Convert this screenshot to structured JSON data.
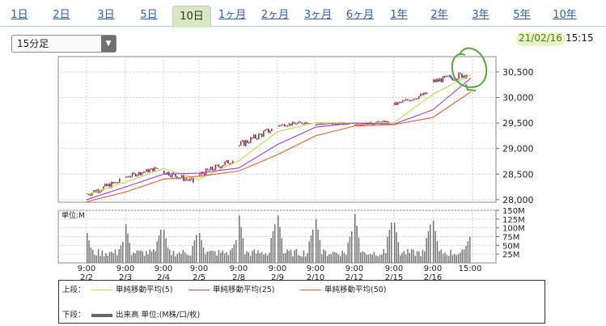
{
  "tabs": [
    {
      "label": "1日",
      "active": false
    },
    {
      "label": "2日",
      "active": false
    },
    {
      "label": "3日",
      "active": false
    },
    {
      "label": "5日",
      "active": false
    },
    {
      "label": "10日",
      "active": true
    },
    {
      "label": "1ヶ月",
      "active": false
    },
    {
      "label": "2ヶ月",
      "active": false
    },
    {
      "label": "3ヶ月",
      "active": false
    },
    {
      "label": "6ヶ月",
      "active": false
    },
    {
      "label": "1年",
      "active": false
    },
    {
      "label": "2年",
      "active": false
    },
    {
      "label": "3年",
      "active": false
    },
    {
      "label": "5年",
      "active": false
    },
    {
      "label": "10年",
      "active": false
    }
  ],
  "interval_select": {
    "value": "15分足"
  },
  "timestamp": {
    "date": "21/02/16",
    "time": "15:15"
  },
  "legend": {
    "upper_label": "上段：",
    "lower_label": "下段：",
    "ma5": "単純移動平均(5)",
    "ma25": "単純移動平均(25)",
    "ma50": "単純移動平均(50)",
    "volume": "出来高 単位:(M株/口/枚)"
  },
  "colors": {
    "ma5": "#c8d84a",
    "ma25": "#9b3fd6",
    "ma50": "#ee5a2a",
    "up": "#d4281c",
    "down": "#2a3f9e",
    "volume": "#777777",
    "annotation": "#5aa63c"
  },
  "chart_data": [
    {
      "type": "line",
      "title": "",
      "y_ticks": [
        "28,000",
        "28,500",
        "29,000",
        "29,500",
        "30,000",
        "30,500"
      ],
      "ylim": [
        27950,
        30800
      ],
      "x_tick_labels": [
        [
          "9:00",
          "2/2"
        ],
        [
          "9:00",
          "2/3"
        ],
        [
          "9:00",
          "2/4"
        ],
        [
          "9:00",
          "2/5"
        ],
        [
          "9:00",
          "2/8"
        ],
        [
          "9:00",
          "2/9"
        ],
        [
          "9:00",
          "2/10"
        ],
        [
          "9:00",
          "2/12"
        ],
        [
          "9:00",
          "2/15"
        ],
        [
          "9:00",
          "2/16"
        ],
        [
          "15:00",
          ""
        ]
      ],
      "sessions": [
        {
          "date": "2/2",
          "open": 28100,
          "high": 28420,
          "low": 28070,
          "close": 28360
        },
        {
          "date": "2/3",
          "open": 28440,
          "high": 28650,
          "low": 28420,
          "close": 28620
        },
        {
          "date": "2/4",
          "open": 28560,
          "high": 28650,
          "low": 28320,
          "close": 28350
        },
        {
          "date": "2/5",
          "open": 28480,
          "high": 28800,
          "low": 28470,
          "close": 28780
        },
        {
          "date": "2/8",
          "open": 29050,
          "high": 29390,
          "low": 28990,
          "close": 29380
        },
        {
          "date": "2/9",
          "open": 29450,
          "high": 29560,
          "low": 29400,
          "close": 29520
        },
        {
          "date": "2/10",
          "open": 29480,
          "high": 29560,
          "low": 29440,
          "close": 29490
        },
        {
          "date": "2/12",
          "open": 29470,
          "high": 29620,
          "low": 29470,
          "close": 29520
        },
        {
          "date": "2/15",
          "open": 29850,
          "high": 30100,
          "low": 29850,
          "close": 30080
        },
        {
          "date": "2/16",
          "open": 30300,
          "high": 30700,
          "low": 30300,
          "close": 30460
        }
      ],
      "series": [
        {
          "name": "単純移動平均(5)",
          "values": [
            28100,
            28340,
            28610,
            28400,
            28760,
            29330,
            29510,
            29500,
            29510,
            30060,
            30450
          ]
        },
        {
          "name": "単純移動平均(25)",
          "values": [
            28000,
            28250,
            28500,
            28520,
            28620,
            29080,
            29420,
            29500,
            29480,
            29760,
            30380
          ]
        },
        {
          "name": "単純移動平均(50)",
          "values": [
            27960,
            28150,
            28400,
            28460,
            28560,
            28880,
            29250,
            29440,
            29470,
            29610,
            30110
          ]
        }
      ]
    },
    {
      "type": "bar",
      "title": "",
      "ylabel": "単位:M",
      "y_ticks": [
        "25M",
        "50M",
        "75M",
        "100M",
        "125M",
        "150M"
      ],
      "ylim": [
        0,
        150
      ],
      "daily_volume_peaks": [
        {
          "date": "2/2",
          "open_peak": 85,
          "close_peak": 60
        },
        {
          "date": "2/3",
          "open_peak": 110,
          "close_peak": 95
        },
        {
          "date": "2/4",
          "open_peak": 95,
          "close_peak": 80
        },
        {
          "date": "2/5",
          "open_peak": 85,
          "close_peak": 65
        },
        {
          "date": "2/8",
          "open_peak": 135,
          "close_peak": 110
        },
        {
          "date": "2/9",
          "open_peak": 135,
          "close_peak": 95
        },
        {
          "date": "2/10",
          "open_peak": 125,
          "close_peak": 90
        },
        {
          "date": "2/12",
          "open_peak": 140,
          "close_peak": 115
        },
        {
          "date": "2/15",
          "open_peak": 115,
          "close_peak": 110
        },
        {
          "date": "2/16",
          "open_peak": 120,
          "close_peak": 75
        }
      ]
    }
  ]
}
